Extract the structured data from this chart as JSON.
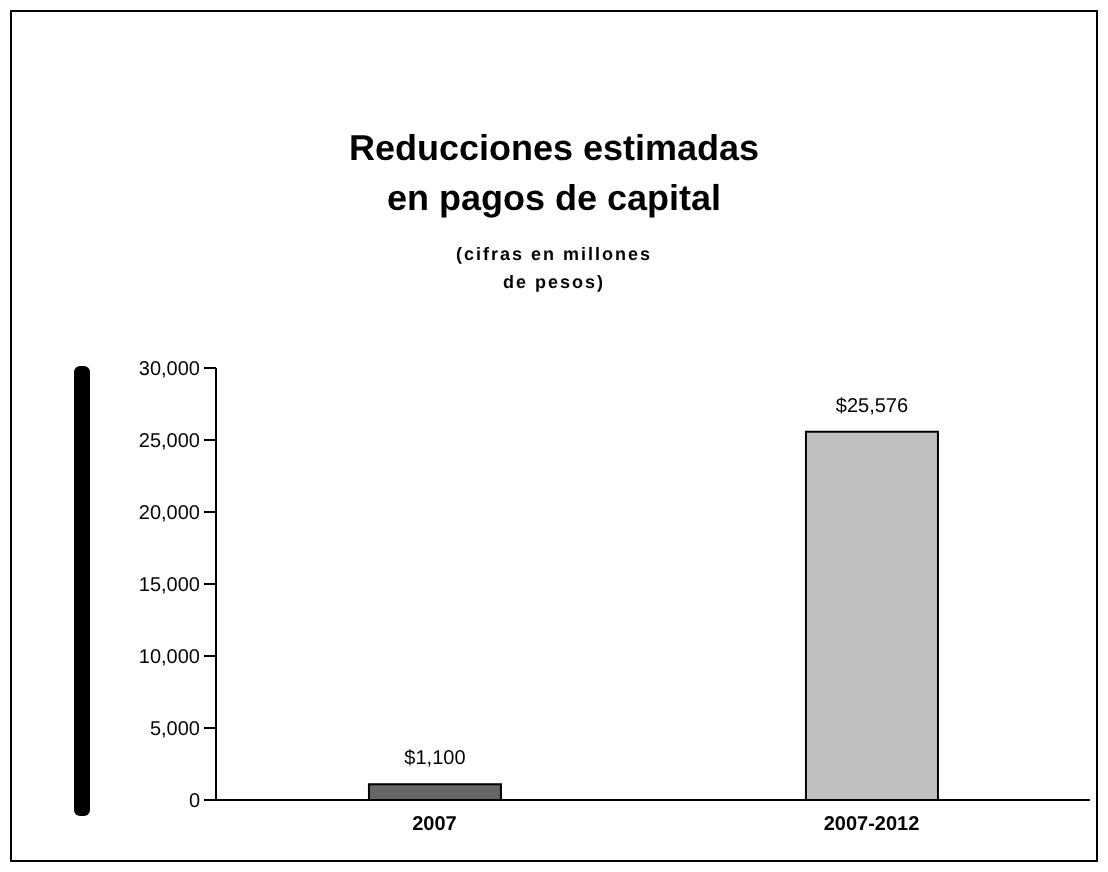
{
  "chart_data": {
    "type": "bar",
    "title": "Reducciones estimadas\nen pagos de capital",
    "subtitle": "(cifras en millones\nde pesos)",
    "categories": [
      "2007",
      "2007-2012"
    ],
    "values": [
      1100,
      25576
    ],
    "colors": [
      "#666666",
      "#c0c0c0"
    ],
    "value_labels": [
      "$1,100",
      "$25,576"
    ],
    "ylim": [
      0,
      30000
    ],
    "yticks": [
      0,
      {
        "value": 5000,
        "label": "5,000"
      },
      {
        "value": 10000,
        "label": "10,000"
      },
      {
        "value": 15000,
        "label": "15,000"
      },
      {
        "value": 20000,
        "label": "20,000"
      },
      {
        "value": 25000,
        "label": "25,000"
      },
      {
        "value": 30000,
        "label": "30,000"
      }
    ]
  }
}
